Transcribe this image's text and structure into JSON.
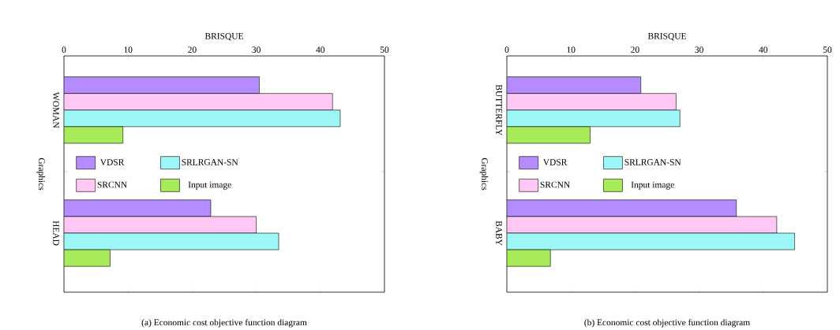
{
  "chart_data": [
    {
      "type": "bar",
      "orientation": "horizontal",
      "title": "(a) Economic cost objective function diagram",
      "xlabel": "BRISQUE",
      "ylabel": "Graphics",
      "categories": [
        "WOMAN",
        "HEAD"
      ],
      "xlim": [
        0,
        50
      ],
      "xticks": [
        0,
        10,
        20,
        30,
        40,
        50
      ],
      "legend": "left",
      "grid": false,
      "series": [
        {
          "name": "VDSR",
          "color": "#b58cff",
          "values": [
            30.5,
            22.9
          ]
        },
        {
          "name": "SRCNN",
          "color": "#ffc8f4",
          "values": [
            41.9,
            30.0
          ]
        },
        {
          "name": "SRLRGAN-SN",
          "color": "#9ef7f7",
          "values": [
            43.1,
            33.5
          ]
        },
        {
          "name": "Input image",
          "color": "#a8eb5a",
          "values": [
            9.2,
            7.2
          ]
        }
      ]
    },
    {
      "type": "bar",
      "orientation": "horizontal",
      "title": "(b) Economic cost objective function diagram",
      "xlabel": "BRISQUE",
      "ylabel": "Graphics",
      "categories": [
        "BUTTERFLY",
        "BABY"
      ],
      "xlim": [
        0,
        50
      ],
      "xticks": [
        0,
        10,
        20,
        30,
        40,
        50
      ],
      "legend": "left",
      "grid": false,
      "series": [
        {
          "name": "VDSR",
          "color": "#b58cff",
          "values": [
            20.9,
            35.8
          ]
        },
        {
          "name": "SRCNN",
          "color": "#ffc8f4",
          "values": [
            26.4,
            42.1
          ]
        },
        {
          "name": "SRLRGAN-SN",
          "color": "#9ef7f7",
          "values": [
            27.0,
            44.9
          ]
        },
        {
          "name": "Input image",
          "color": "#a8eb5a",
          "values": [
            13.0,
            6.8
          ]
        }
      ]
    }
  ]
}
